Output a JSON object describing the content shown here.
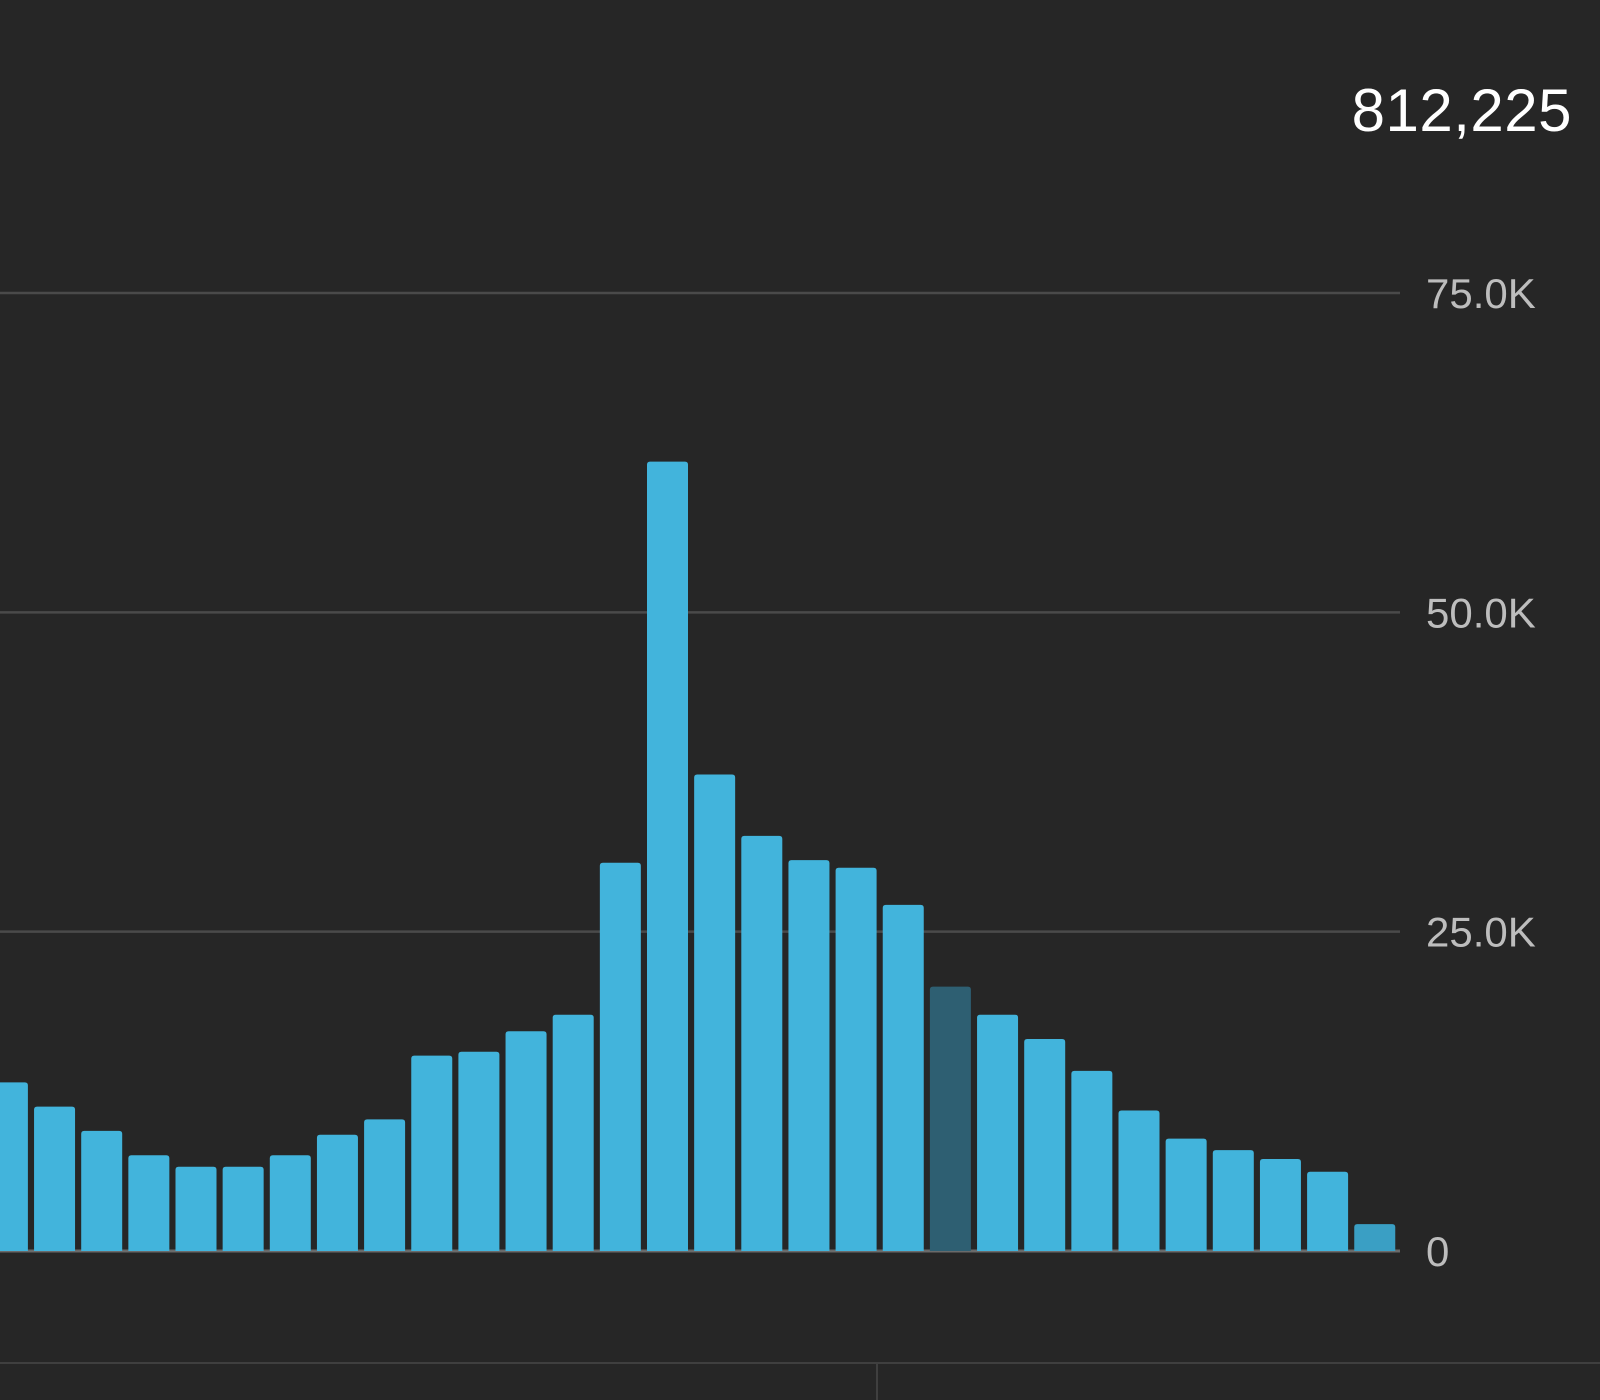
{
  "header": {
    "total_value": "812,225"
  },
  "colors": {
    "background": "#262626",
    "bar": "#42b4dc",
    "bar_highlighted": "#2e5f72",
    "bar_partial": "#3a9fc4",
    "grid": "#4a4a4a",
    "baseline": "#6a6a6a",
    "tick_label": "#bdbdbd"
  },
  "chart_data": {
    "type": "bar",
    "title": "",
    "xlabel": "",
    "ylabel": "",
    "ylim": [
      0,
      75000
    ],
    "y_axis_side": "right",
    "y_ticks": [
      {
        "value": 75000,
        "label": "75.0K"
      },
      {
        "value": 50000,
        "label": "50.0K"
      },
      {
        "value": 25000,
        "label": "25.0K"
      },
      {
        "value": 0,
        "label": "0"
      }
    ],
    "grid": true,
    "legend": "none",
    "highlighted_index": 20,
    "partial_index": 29,
    "values": [
      13200,
      11300,
      9400,
      7500,
      6600,
      6600,
      7500,
      9100,
      10300,
      15300,
      15600,
      17200,
      18500,
      30400,
      61800,
      37300,
      32500,
      30600,
      30000,
      27100,
      20700,
      18500,
      16600,
      14100,
      11000,
      8800,
      7900,
      7200,
      6200,
      2100
    ]
  }
}
